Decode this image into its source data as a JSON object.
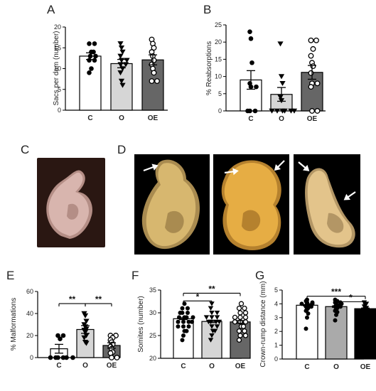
{
  "panels": {
    "A": "A",
    "B": "B",
    "C": "C",
    "D": "D",
    "E": "E",
    "F": "F",
    "G": "G"
  },
  "photos": {
    "C": {
      "background": "#2a1712",
      "embryo_color": "#d8b5ae",
      "embryo_shadow": "#b48e86"
    },
    "D": [
      {
        "background": "#000000",
        "embryo_color": "#d7b76f",
        "embryo_shadow": "#a98b50"
      },
      {
        "background": "#000000",
        "embryo_color": "#e6ad44",
        "embryo_shadow": "#b5812e"
      },
      {
        "background": "#000000",
        "embryo_color": "#e3c48b",
        "embryo_shadow": "#b39665"
      }
    ],
    "arrow_color": "#ffffff"
  },
  "chart_data": [
    {
      "id": "A",
      "type": "bar",
      "ylabel": "Sacs per dam (number)",
      "ylim": [
        0,
        20
      ],
      "yticks": [
        0,
        5,
        10,
        15,
        20
      ],
      "categories": [
        "C",
        "O",
        "OE"
      ],
      "values": [
        13,
        11.2,
        12.1
      ],
      "sem": [
        0.8,
        1.0,
        1.2
      ],
      "bar_colors": [
        "#ffffff",
        "#d6d6d6",
        "#666666"
      ],
      "marker_styles": [
        "filled-circle",
        "filled-triangle-down",
        "open-circle"
      ],
      "points": [
        [
          16,
          16,
          14,
          14,
          13,
          13,
          12,
          12,
          10,
          9
        ],
        [
          16,
          15,
          14,
          13,
          12,
          12,
          11,
          11,
          10,
          9,
          7,
          6
        ],
        [
          17,
          16,
          15,
          14,
          13,
          12,
          11,
          10,
          9,
          7,
          7
        ]
      ],
      "significance": []
    },
    {
      "id": "B",
      "type": "bar",
      "ylabel": "% Reabsorptions",
      "ylim": [
        0,
        25
      ],
      "yticks": [
        0,
        5,
        10,
        15,
        20,
        25
      ],
      "categories": [
        "C",
        "O",
        "OE"
      ],
      "values": [
        9,
        4.8,
        11.2
      ],
      "sem": [
        2.7,
        2.0,
        2.0
      ],
      "bar_colors": [
        "#ffffff",
        "#d6d6d6",
        "#666666"
      ],
      "marker_styles": [
        "filled-circle",
        "filled-triangle-down",
        "open-circle"
      ],
      "points": [
        [
          23,
          21,
          14,
          8,
          7,
          7,
          0,
          0,
          0
        ],
        [
          19.5,
          10,
          8,
          4,
          3,
          0,
          0,
          0,
          0,
          0,
          0
        ],
        [
          20.5,
          20.5,
          18,
          16,
          14,
          13,
          11,
          8,
          8,
          7,
          0,
          0
        ]
      ],
      "significance": []
    },
    {
      "id": "E",
      "type": "bar",
      "ylabel": "% Malformations",
      "ylim": [
        0,
        60
      ],
      "yticks": [
        0,
        20,
        40,
        60
      ],
      "categories": [
        "C",
        "O",
        "OE"
      ],
      "values": [
        8,
        25.5,
        11
      ],
      "sem": [
        4,
        3.5,
        2.5
      ],
      "bar_colors": [
        "#ffffff",
        "#d6d6d6",
        "#666666"
      ],
      "marker_styles": [
        "filled-circle",
        "filled-triangle-down",
        "open-circle"
      ],
      "points": [
        [
          20,
          20,
          17,
          0,
          0,
          0,
          0,
          0,
          0
        ],
        [
          40,
          38,
          33,
          30,
          28,
          26,
          25,
          23,
          20,
          18,
          14,
          13
        ],
        [
          20,
          20,
          18,
          16,
          14,
          12,
          10,
          8,
          5,
          4,
          0,
          0
        ]
      ],
      "significance": [
        {
          "from": 0,
          "to": 1,
          "label": "**",
          "y": 49
        },
        {
          "from": 1,
          "to": 2,
          "label": "**",
          "y": 49
        }
      ]
    },
    {
      "id": "F",
      "type": "bar",
      "ylabel": "Somites (number)",
      "ylim": [
        20,
        35
      ],
      "yticks": [
        20,
        25,
        30,
        35
      ],
      "categories": [
        "C",
        "O",
        "OE"
      ],
      "values": [
        28.7,
        28.1,
        28.0
      ],
      "sem": [
        0.2,
        0.25,
        0.3
      ],
      "bar_colors": [
        "#ffffff",
        "#d6d6d6",
        "#666666"
      ],
      "marker_styles": [
        "filled-circle",
        "filled-triangle-down",
        "open-circle"
      ],
      "points": [
        [
          24,
          25,
          26,
          26,
          27,
          27,
          27,
          28,
          28,
          28,
          28,
          29,
          29,
          29,
          29,
          30,
          30,
          30,
          31,
          31,
          32
        ],
        [
          24,
          25,
          26,
          26,
          27,
          27,
          28,
          28,
          28,
          28,
          29,
          29,
          29,
          30,
          30,
          31,
          32
        ],
        [
          24,
          25,
          25,
          26,
          26,
          27,
          27,
          28,
          28,
          28,
          29,
          29,
          29,
          30,
          30,
          31,
          31,
          32
        ]
      ],
      "significance": [
        {
          "from": 0,
          "to": 1,
          "label": "*",
          "y": 32.6
        },
        {
          "from": 0,
          "to": 2,
          "label": "**",
          "y": 34.3
        }
      ]
    },
    {
      "id": "G",
      "type": "bar",
      "ylabel": "Crown-rump distance (mm)",
      "ylim": [
        0,
        5
      ],
      "yticks": [
        0,
        1,
        2,
        3,
        4,
        5
      ],
      "categories": [
        "C",
        "O",
        "OE"
      ],
      "values": [
        3.9,
        3.8,
        3.65
      ],
      "sem": [
        0.05,
        0.05,
        0.05
      ],
      "bar_colors": [
        "#ffffff",
        "#aaaaaa",
        "#000000"
      ],
      "marker_styles": [
        "filled-circle",
        "filled-circle",
        "filled-triangle-down"
      ],
      "points": [
        [
          2.2,
          3.0,
          3.3,
          3.5,
          3.6,
          3.7,
          3.8,
          3.8,
          3.9,
          3.9,
          4.0,
          4.0,
          4.0,
          4.1,
          4.1,
          4.2,
          4.3
        ],
        [
          2.8,
          3.2,
          3.4,
          3.5,
          3.6,
          3.7,
          3.8,
          3.8,
          3.9,
          3.9,
          4.0,
          4.0,
          4.1,
          4.1,
          4.2,
          4.3
        ],
        [
          3.3,
          3.4,
          3.5,
          3.5,
          3.6,
          3.7,
          3.8,
          3.9,
          4.0,
          4.1
        ]
      ],
      "significance": [
        {
          "from": 0,
          "to": 2,
          "label": "***",
          "y": 4.55
        },
        {
          "from": 1,
          "to": 2,
          "label": "*",
          "y": 4.15
        }
      ]
    }
  ]
}
